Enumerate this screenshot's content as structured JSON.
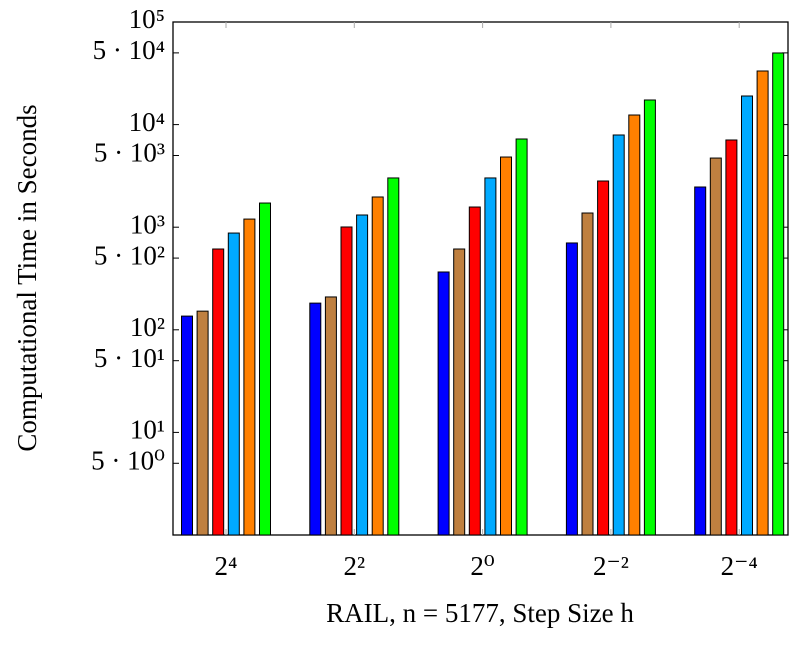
{
  "chart_data": {
    "type": "bar",
    "y_label": "Computational Time in Seconds",
    "x_label": "RAIL, n = 5177, Step Size h",
    "categories": [
      "2⁴",
      "2²",
      "2⁰",
      "2⁻²",
      "2⁻⁴"
    ],
    "log_y": true,
    "ylim": [
      1,
      100000
    ],
    "yticks": [
      {
        "value": 5,
        "label": "5 · 10⁰"
      },
      {
        "value": 10,
        "label": "10¹"
      },
      {
        "value": 50,
        "label": "5 · 10¹"
      },
      {
        "value": 100,
        "label": "10²"
      },
      {
        "value": 500,
        "label": "5 · 10²"
      },
      {
        "value": 1000,
        "label": "10³"
      },
      {
        "value": 5000,
        "label": "5 · 10³"
      },
      {
        "value": 10000,
        "label": "10⁴"
      },
      {
        "value": 50000,
        "label": "5 · 10⁴"
      },
      {
        "value": 100000,
        "label": "10⁵"
      }
    ],
    "series": [
      {
        "color": "#0000ff",
        "values": [
          136,
          182,
          366,
          702,
          2465
        ]
      },
      {
        "color": "#bf8040",
        "values": [
          152,
          209,
          613,
          1375,
          4720
        ]
      },
      {
        "color": "#ff0000",
        "values": [
          613,
          1005,
          1573,
          2820,
          7080
        ]
      },
      {
        "color": "#00aaff",
        "values": [
          877,
          1315,
          3020,
          7920,
          19000
        ]
      },
      {
        "color": "#ff8000",
        "values": [
          1200,
          1970,
          4830,
          12400,
          33300
        ]
      },
      {
        "color": "#00ff00",
        "values": [
          1720,
          3020,
          7240,
          17370,
          49900
        ]
      }
    ]
  }
}
